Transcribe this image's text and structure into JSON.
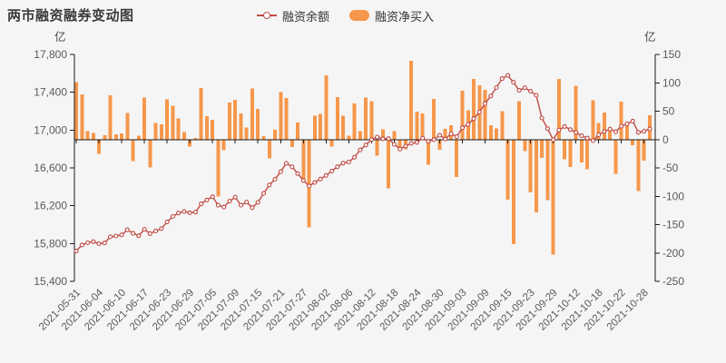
{
  "title": "两市融资融券变动图",
  "legend": {
    "items": [
      {
        "label": "融资余额",
        "marker": "line-hollow-circle",
        "color": "#bf4a44"
      },
      {
        "label": "融资净买入",
        "marker": "rounded-bar",
        "color": "#f6974b"
      }
    ]
  },
  "colors": {
    "background": "#f5f5f5",
    "line_series": "#bf4a44",
    "bar_series": "#f6974b",
    "axis": "#1a1a1a",
    "tick_text": "#595959",
    "title_text": "#3a3a3a",
    "legend_text": "#333333",
    "axis_name_text": "#464646"
  },
  "chart_data": {
    "type": "bar",
    "subtype": "line+bar dual-axis combo",
    "title": "两市融资融券变动图",
    "legend_position": "top-center",
    "grid": false,
    "x_label_every": 4,
    "x_label_rotation": 45,
    "x": [
      "2021-05-31",
      "2021-06-01",
      "2021-06-02",
      "2021-06-03",
      "2021-06-04",
      "2021-06-07",
      "2021-06-08",
      "2021-06-09",
      "2021-06-10",
      "2021-06-11",
      "2021-06-15",
      "2021-06-16",
      "2021-06-17",
      "2021-06-18",
      "2021-06-21",
      "2021-06-22",
      "2021-06-23",
      "2021-06-24",
      "2021-06-25",
      "2021-06-28",
      "2021-06-29",
      "2021-06-30",
      "2021-07-01",
      "2021-07-02",
      "2021-07-05",
      "2021-07-06",
      "2021-07-07",
      "2021-07-08",
      "2021-07-09",
      "2021-07-12",
      "2021-07-13",
      "2021-07-14",
      "2021-07-15",
      "2021-07-16",
      "2021-07-19",
      "2021-07-20",
      "2021-07-21",
      "2021-07-22",
      "2021-07-23",
      "2021-07-26",
      "2021-07-27",
      "2021-07-28",
      "2021-07-29",
      "2021-07-30",
      "2021-08-02",
      "2021-08-03",
      "2021-08-04",
      "2021-08-05",
      "2021-08-06",
      "2021-08-09",
      "2021-08-10",
      "2021-08-11",
      "2021-08-12",
      "2021-08-13",
      "2021-08-16",
      "2021-08-17",
      "2021-08-18",
      "2021-08-19",
      "2021-08-20",
      "2021-08-23",
      "2021-08-24",
      "2021-08-25",
      "2021-08-26",
      "2021-08-27",
      "2021-08-30",
      "2021-08-31",
      "2021-09-01",
      "2021-09-02",
      "2021-09-03",
      "2021-09-06",
      "2021-09-07",
      "2021-09-08",
      "2021-09-09",
      "2021-09-10",
      "2021-09-13",
      "2021-09-14",
      "2021-09-15",
      "2021-09-16",
      "2021-09-17",
      "2021-09-22",
      "2021-09-23",
      "2021-09-24",
      "2021-09-27",
      "2021-09-28",
      "2021-09-29",
      "2021-09-30",
      "2021-10-08",
      "2021-10-11",
      "2021-10-12",
      "2021-10-13",
      "2021-10-14",
      "2021-10-15",
      "2021-10-18",
      "2021-10-19",
      "2021-10-20",
      "2021-10-21",
      "2021-10-22",
      "2021-10-25",
      "2021-10-26",
      "2021-10-27",
      "2021-10-28",
      "2021-10-29"
    ],
    "series": [
      {
        "name": "融资余额",
        "type": "line",
        "yaxis": "left",
        "color": "#bf4a44",
        "marker": "hollow-circle",
        "values": [
          15720,
          15785,
          15808,
          15820,
          15798,
          15806,
          15870,
          15880,
          15892,
          15945,
          15908,
          15882,
          15950,
          15905,
          15932,
          15958,
          16028,
          16086,
          16122,
          16138,
          16126,
          16132,
          16220,
          16260,
          16295,
          16205,
          16185,
          16248,
          16290,
          16205,
          16238,
          16180,
          16235,
          16330,
          16420,
          16480,
          16560,
          16648,
          16612,
          16540,
          16468,
          16408,
          16445,
          16482,
          16520,
          16565,
          16612,
          16650,
          16662,
          16712,
          16790,
          16842,
          16900,
          16926,
          16908,
          16910,
          16850,
          16800,
          16830,
          16860,
          16870,
          16915,
          16880,
          16900,
          16945,
          16905,
          16960,
          16930,
          17025,
          17060,
          17120,
          17190,
          17280,
          17360,
          17450,
          17545,
          17578,
          17505,
          17420,
          17448,
          17410,
          17368,
          17128,
          17015,
          16898,
          17000,
          17038,
          17005,
          16975,
          16940,
          16915,
          16888,
          16950,
          16985,
          17010,
          16982,
          17042,
          17065,
          17095,
          16975,
          16988,
          17012
        ]
      },
      {
        "name": "融资净买入",
        "type": "bar",
        "yaxis": "right",
        "color": "#f6974b",
        "values": [
          101,
          80,
          15,
          12,
          -25,
          8,
          78,
          9,
          11,
          47,
          -38,
          7,
          74,
          -49,
          29,
          27,
          71,
          60,
          37,
          13,
          -12,
          3,
          91,
          41,
          35,
          -100,
          -19,
          65,
          70,
          46,
          21,
          90,
          54,
          6,
          -33,
          17,
          84,
          73,
          -13,
          30,
          -70,
          -155,
          42,
          45,
          113,
          -12,
          75,
          42,
          7,
          64,
          15,
          74,
          68,
          -28,
          18,
          -86,
          15,
          -20,
          -17,
          139,
          49,
          46,
          -44,
          72,
          -18,
          19,
          25,
          -66,
          86,
          52,
          107,
          96,
          88,
          25,
          20,
          50,
          -106,
          -184,
          68,
          -20,
          -93,
          -128,
          -32,
          -107,
          -203,
          107,
          -35,
          -48,
          95,
          -40,
          -52,
          69,
          29,
          48,
          15,
          -60,
          67,
          27,
          -10,
          -91,
          -37,
          43
        ]
      }
    ],
    "y_left": {
      "name": "亿",
      "min": 15400,
      "max": 17800,
      "tick_step": 400,
      "tick_labels": [
        "17,800",
        "17,400",
        "17,000",
        "16,600",
        "16,200",
        "15,800",
        "15,400"
      ]
    },
    "y_right": {
      "name": "亿",
      "min": -250,
      "max": 150,
      "tick_step": 50,
      "tick_labels": [
        "150",
        "100",
        "50",
        "0",
        "-50",
        "-100",
        "-150",
        "-200",
        "-250"
      ]
    }
  }
}
